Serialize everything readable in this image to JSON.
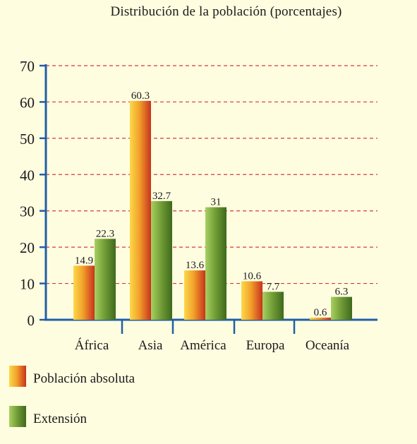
{
  "chart_data": {
    "type": "bar",
    "title": "Distribución de la población (porcentajes)",
    "categories": [
      "África",
      "Asia",
      "América",
      "Europa",
      "Oceanía"
    ],
    "series": [
      {
        "name": "Población absoluta",
        "values": [
          14.9,
          60.3,
          13.6,
          10.6,
          0.6
        ],
        "labels": [
          "14.9",
          "60.3",
          "13.6",
          "10.6",
          "0.6"
        ]
      },
      {
        "name": "Extensión",
        "values": [
          22.3,
          32.7,
          31,
          7.7,
          6.3
        ],
        "labels": [
          "22.3",
          "32.7",
          "31",
          "7.7",
          "6.3"
        ]
      }
    ],
    "yticks": [
      "0",
      "10",
      "20",
      "30",
      "40",
      "50",
      "60",
      "70"
    ],
    "ylim": [
      0,
      70
    ],
    "grid": true,
    "legend_position": "bottom-left"
  },
  "colors": {
    "background": "#fffde0",
    "axis": "#1f5fa8",
    "grid": "#d63a3a",
    "series_1_light": "#f7c23e",
    "series_1_dark": "#c8321e",
    "series_2_light": "#8fbf4e",
    "series_2_dark": "#3e6a1c"
  }
}
